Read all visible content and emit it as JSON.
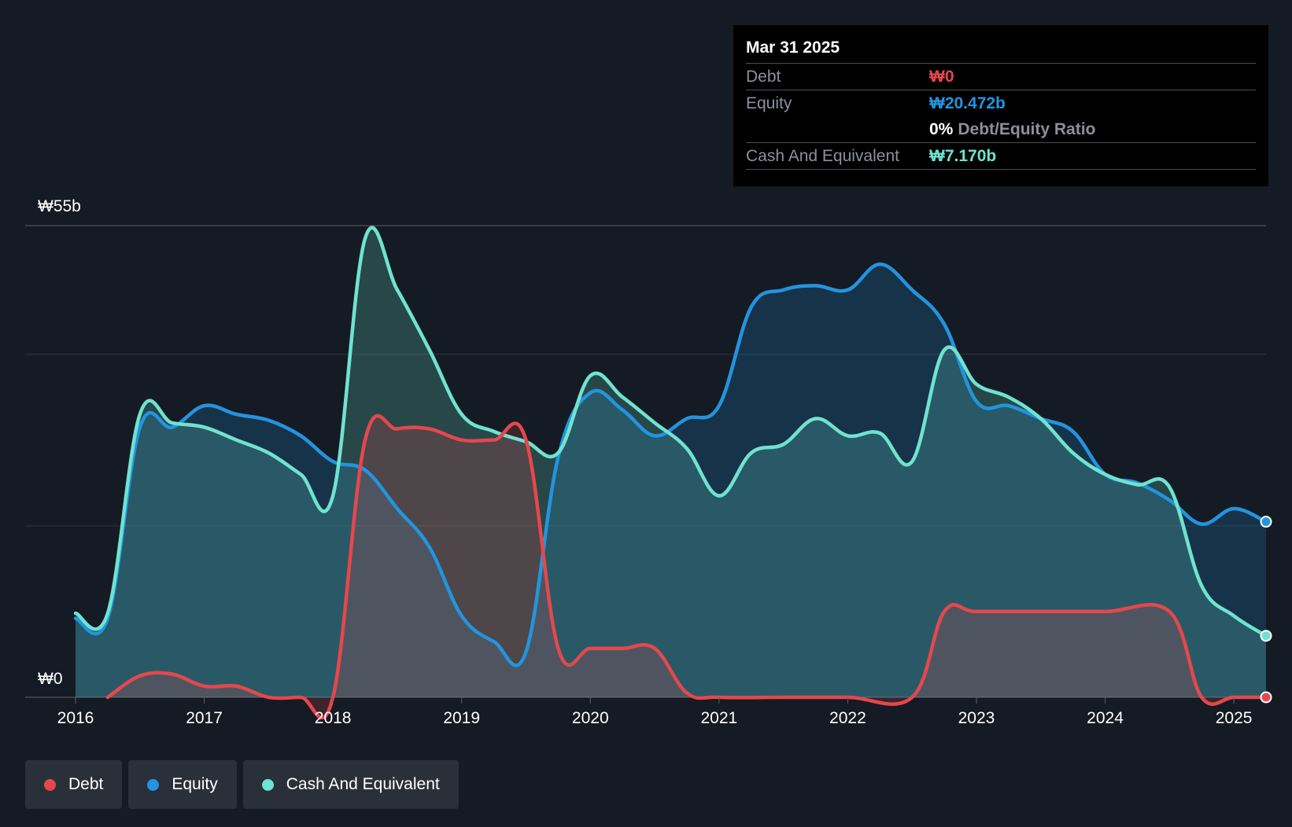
{
  "colors": {
    "debt": "#e5474d",
    "equity": "#2394df",
    "cash": "#6fe3cf",
    "grid": "#2d333c",
    "background": "#151b24"
  },
  "tooltip": {
    "date": "Mar 31 2025",
    "debt_label": "Debt",
    "debt_value": "₩0",
    "equity_label": "Equity",
    "equity_value": "₩20.472b",
    "ratio_value": "0%",
    "ratio_label": "Debt/Equity Ratio",
    "cash_label": "Cash And Equivalent",
    "cash_value": "₩7.170b"
  },
  "legend": [
    {
      "label": "Debt",
      "color": "#e5474d"
    },
    {
      "label": "Equity",
      "color": "#2394df"
    },
    {
      "label": "Cash And Equivalent",
      "color": "#6fe3cf"
    }
  ],
  "chart_data": {
    "type": "area",
    "title": "",
    "xlabel": "",
    "ylabel": "",
    "y_top_label": "₩55b",
    "y_bottom_label": "₩0",
    "ylim": [
      0,
      55
    ],
    "xlim": [
      2016.0,
      2025.25
    ],
    "x_ticks": [
      2016,
      2017,
      2018,
      2019,
      2020,
      2021,
      2022,
      2023,
      2024,
      2025
    ],
    "x_tick_labels": [
      "2016",
      "2017",
      "2018",
      "2019",
      "2020",
      "2021",
      "2022",
      "2023",
      "2024",
      "2025"
    ],
    "series": [
      {
        "name": "Equity",
        "key": "equity",
        "points": [
          [
            2016.0,
            9.2
          ],
          [
            2016.25,
            9.2
          ],
          [
            2016.5,
            31.5
          ],
          [
            2016.75,
            31.5
          ],
          [
            2017.0,
            34.0
          ],
          [
            2017.25,
            33.0
          ],
          [
            2017.5,
            32.3
          ],
          [
            2017.75,
            30.5
          ],
          [
            2018.0,
            27.5
          ],
          [
            2018.25,
            26.5
          ],
          [
            2018.5,
            22.0
          ],
          [
            2018.75,
            17.5
          ],
          [
            2019.0,
            9.5
          ],
          [
            2019.25,
            6.5
          ],
          [
            2019.5,
            5.3
          ],
          [
            2019.75,
            28.0
          ],
          [
            2020.0,
            35.5
          ],
          [
            2020.25,
            33.5
          ],
          [
            2020.5,
            30.5
          ],
          [
            2020.75,
            32.5
          ],
          [
            2021.0,
            34.0
          ],
          [
            2021.25,
            45.5
          ],
          [
            2021.5,
            47.5
          ],
          [
            2021.75,
            48.0
          ],
          [
            2022.0,
            47.5
          ],
          [
            2022.25,
            50.5
          ],
          [
            2022.5,
            47.5
          ],
          [
            2022.75,
            43.5
          ],
          [
            2023.0,
            34.5
          ],
          [
            2023.25,
            34.0
          ],
          [
            2023.5,
            32.5
          ],
          [
            2023.75,
            31.0
          ],
          [
            2024.0,
            26.0
          ],
          [
            2024.25,
            25.0
          ],
          [
            2024.5,
            23.0
          ],
          [
            2024.75,
            20.2
          ],
          [
            2025.0,
            22.0
          ],
          [
            2025.25,
            20.472
          ]
        ]
      },
      {
        "name": "Cash And Equivalent",
        "key": "cash",
        "points": [
          [
            2016.0,
            9.8
          ],
          [
            2016.25,
            9.8
          ],
          [
            2016.5,
            33.0
          ],
          [
            2016.75,
            32.0
          ],
          [
            2017.0,
            31.5
          ],
          [
            2017.25,
            30.0
          ],
          [
            2017.5,
            28.5
          ],
          [
            2017.75,
            26.0
          ],
          [
            2018.0,
            23.5
          ],
          [
            2018.25,
            53.5
          ],
          [
            2018.5,
            47.5
          ],
          [
            2018.75,
            40.5
          ],
          [
            2019.0,
            33.0
          ],
          [
            2019.25,
            31.0
          ],
          [
            2019.5,
            29.8
          ],
          [
            2019.75,
            28.5
          ],
          [
            2020.0,
            37.5
          ],
          [
            2020.25,
            35.0
          ],
          [
            2020.5,
            32.0
          ],
          [
            2020.75,
            29.0
          ],
          [
            2021.0,
            23.5
          ],
          [
            2021.25,
            28.5
          ],
          [
            2021.5,
            29.5
          ],
          [
            2021.75,
            32.5
          ],
          [
            2022.0,
            30.5
          ],
          [
            2022.25,
            30.8
          ],
          [
            2022.5,
            27.5
          ],
          [
            2022.75,
            40.5
          ],
          [
            2023.0,
            36.5
          ],
          [
            2023.25,
            35.0
          ],
          [
            2023.5,
            32.5
          ],
          [
            2023.75,
            28.5
          ],
          [
            2024.0,
            26.0
          ],
          [
            2024.25,
            24.8
          ],
          [
            2024.5,
            24.5
          ],
          [
            2024.75,
            13.0
          ],
          [
            2025.0,
            9.5
          ],
          [
            2025.25,
            7.17
          ]
        ]
      },
      {
        "name": "Debt",
        "key": "debt",
        "points": [
          [
            2016.25,
            0.0
          ],
          [
            2016.5,
            2.5
          ],
          [
            2016.75,
            2.7
          ],
          [
            2017.0,
            1.3
          ],
          [
            2017.25,
            1.3
          ],
          [
            2017.5,
            0.0
          ],
          [
            2017.75,
            0.0
          ],
          [
            2018.0,
            0.0
          ],
          [
            2018.25,
            30.0
          ],
          [
            2018.5,
            31.3
          ],
          [
            2018.75,
            31.3
          ],
          [
            2019.0,
            30.0
          ],
          [
            2019.25,
            30.0
          ],
          [
            2019.5,
            30.0
          ],
          [
            2019.75,
            5.7
          ],
          [
            2020.0,
            5.7
          ],
          [
            2020.25,
            5.7
          ],
          [
            2020.5,
            5.7
          ],
          [
            2020.75,
            0.5
          ],
          [
            2021.0,
            0.0
          ],
          [
            2021.5,
            0.0
          ],
          [
            2022.0,
            0.0
          ],
          [
            2022.5,
            0.0
          ],
          [
            2022.75,
            10.0
          ],
          [
            2023.0,
            10.0
          ],
          [
            2023.5,
            10.0
          ],
          [
            2024.0,
            10.0
          ],
          [
            2024.5,
            10.0
          ],
          [
            2024.75,
            0.0
          ],
          [
            2025.0,
            0.0
          ],
          [
            2025.25,
            0.0
          ]
        ]
      }
    ]
  }
}
